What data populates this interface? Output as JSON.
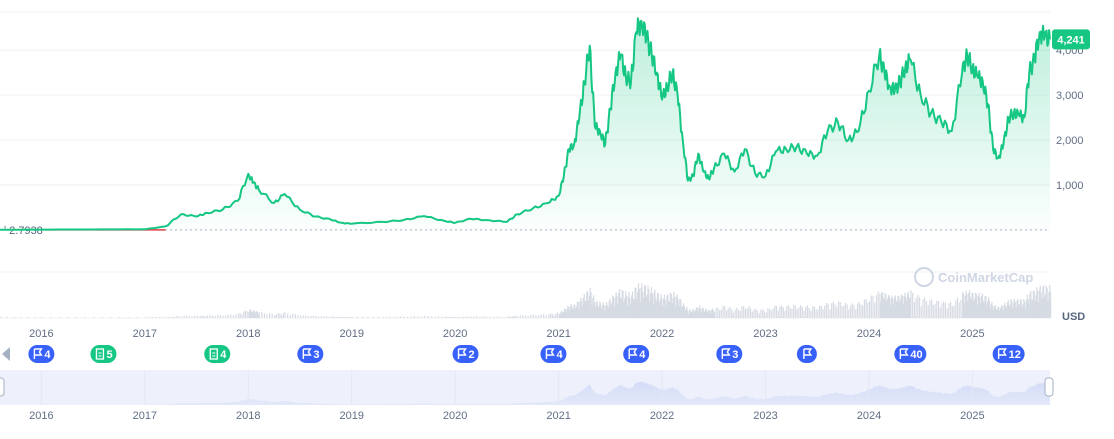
{
  "chart_data": {
    "type": "area",
    "title": "",
    "xlabel": "",
    "ylabel": "",
    "currency_label": "USD",
    "watermark": "CoinMarketCap",
    "current_value": 4241,
    "current_value_label": "4,241",
    "baseline_value": 2.7938,
    "baseline_label": "2.7938",
    "x_tick_labels": [
      "2016",
      "2017",
      "2018",
      "2019",
      "2020",
      "2021",
      "2022",
      "2023",
      "2024",
      "2025"
    ],
    "y_tick_labels": [
      "1,000",
      "2,000",
      "3,000",
      "4,000"
    ],
    "y_ticks": [
      1000,
      2000,
      3000,
      4000
    ],
    "ylim": [
      0,
      4850
    ],
    "xlim": [
      2015.6,
      2025.75
    ],
    "colors": {
      "line": "#16c784",
      "price_badge": "#16c784",
      "baseline_segment": "#ea3943",
      "event_flag": "#3861fb",
      "event_doc": "#16c784",
      "navigator_fill": "#d3dcf7",
      "navigator_bg": "#eef1fb",
      "volume": "#d6dbe3"
    },
    "series": [
      {
        "x": [
          2015.6,
          2016.0,
          2016.5,
          2017.0,
          2017.2,
          2017.35,
          2017.5,
          2017.6,
          2017.75,
          2017.9,
          2018.0,
          2018.05,
          2018.1,
          2018.25,
          2018.35,
          2018.5,
          2018.65,
          2018.8,
          2018.9,
          2019.0,
          2019.3,
          2019.5,
          2019.7,
          2019.9,
          2020.0,
          2020.15,
          2020.3,
          2020.5,
          2020.6,
          2020.75,
          2020.9,
          2021.0,
          2021.05,
          2021.1,
          2021.15,
          2021.2,
          2021.25,
          2021.3,
          2021.35,
          2021.4,
          2021.45,
          2021.5,
          2021.55,
          2021.6,
          2021.65,
          2021.7,
          2021.75,
          2021.8,
          2021.85,
          2021.9,
          2021.95,
          2022.0,
          2022.05,
          2022.1,
          2022.15,
          2022.2,
          2022.25,
          2022.3,
          2022.35,
          2022.4,
          2022.45,
          2022.5,
          2022.6,
          2022.7,
          2022.8,
          2022.9,
          2023.0,
          2023.1,
          2023.2,
          2023.3,
          2023.4,
          2023.5,
          2023.6,
          2023.7,
          2023.8,
          2023.9,
          2024.0,
          2024.1,
          2024.15,
          2024.2,
          2024.25,
          2024.3,
          2024.35,
          2024.4,
          2024.5,
          2024.6,
          2024.7,
          2024.8,
          2024.9,
          2024.95,
          2025.0,
          2025.05,
          2025.1,
          2025.15,
          2025.2,
          2025.25,
          2025.3,
          2025.35,
          2025.4,
          2025.45,
          2025.5,
          2025.55,
          2025.6,
          2025.65,
          2025.7,
          2025.75
        ],
        "y": [
          2.79,
          10,
          12,
          15,
          80,
          350,
          300,
          380,
          450,
          650,
          1250,
          1050,
          900,
          600,
          800,
          450,
          300,
          230,
          160,
          140,
          180,
          220,
          310,
          200,
          160,
          250,
          220,
          180,
          350,
          480,
          600,
          760,
          1200,
          1800,
          1900,
          2500,
          3300,
          4100,
          2300,
          2200,
          1900,
          2700,
          3500,
          3900,
          3400,
          3300,
          4400,
          4650,
          4300,
          3900,
          3500,
          2900,
          3200,
          3500,
          3000,
          2000,
          1100,
          1200,
          1700,
          1300,
          1150,
          1350,
          1700,
          1300,
          1800,
          1250,
          1200,
          1750,
          1800,
          1850,
          1700,
          1650,
          2200,
          2400,
          2000,
          2200,
          3100,
          3900,
          3500,
          3200,
          3100,
          3300,
          3600,
          3800,
          3000,
          2600,
          2400,
          2200,
          3500,
          3900,
          3600,
          3400,
          3300,
          2800,
          1800,
          1600,
          1900,
          2500,
          2600,
          2550,
          2500,
          3500,
          3800,
          4400,
          4300,
          4241
        ]
      }
    ],
    "events": [
      {
        "kind": "flag",
        "count": "4",
        "x": 2016.0
      },
      {
        "kind": "doc",
        "count": "5",
        "x": 2016.6
      },
      {
        "kind": "doc",
        "count": "4",
        "x": 2017.7
      },
      {
        "kind": "flag",
        "count": "3",
        "x": 2018.6
      },
      {
        "kind": "flag",
        "count": "2",
        "x": 2020.1
      },
      {
        "kind": "flag",
        "count": "4",
        "x": 2020.95
      },
      {
        "kind": "flag",
        "count": "4",
        "x": 2021.75
      },
      {
        "kind": "flag",
        "count": "3",
        "x": 2022.65
      },
      {
        "kind": "flag",
        "count": "",
        "x": 2023.4
      },
      {
        "kind": "flag",
        "count": "40",
        "x": 2024.4
      },
      {
        "kind": "flag",
        "count": "12",
        "x": 2025.35
      }
    ],
    "grid": true,
    "legend": "none"
  }
}
